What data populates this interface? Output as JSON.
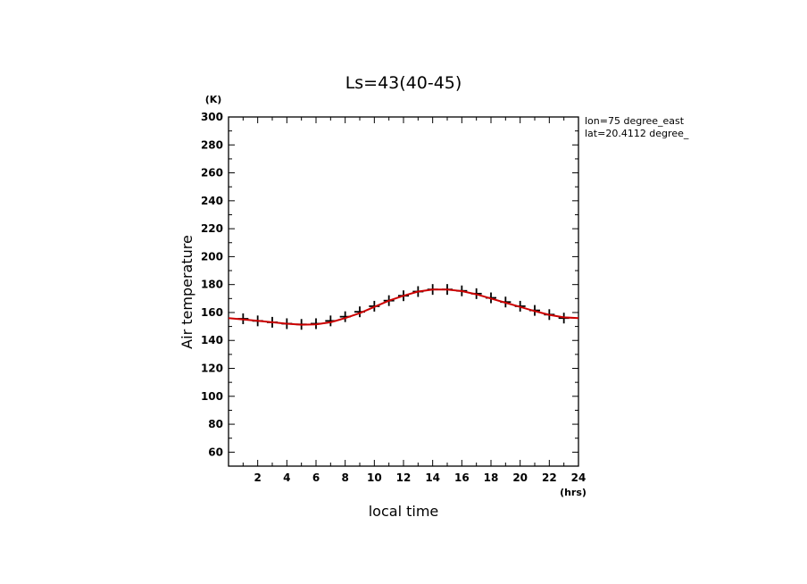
{
  "chart_data": {
    "type": "line",
    "title": "Ls=43(40-45)",
    "xlabel": "local time",
    "ylabel": "Air temperature",
    "x_unit": "(hrs)",
    "y_unit": "(K)",
    "xlim": [
      0,
      24
    ],
    "ylim": [
      50,
      300
    ],
    "x_ticks": [
      2,
      4,
      6,
      8,
      10,
      12,
      14,
      16,
      18,
      20,
      22,
      24
    ],
    "y_ticks": [
      60,
      80,
      100,
      120,
      140,
      160,
      180,
      200,
      220,
      240,
      260,
      280,
      300
    ],
    "annotations": [
      "lon=75 degree_east",
      "lat=20.4112 degree_"
    ],
    "grid": false,
    "series": [
      {
        "marker": "plus",
        "color": "#000000",
        "x": [
          1,
          2,
          3,
          4,
          5,
          6,
          7,
          8,
          9,
          10,
          11,
          12,
          13,
          14,
          15,
          16,
          17,
          18,
          19,
          20,
          21,
          22,
          23
        ],
        "y": [
          155.5,
          154,
          153,
          152,
          151.5,
          152,
          154,
          157,
          160.5,
          164.5,
          168.5,
          172,
          175,
          176.5,
          176.5,
          175.5,
          173.5,
          170.5,
          167.5,
          164.5,
          161.5,
          158.5,
          156
        ]
      },
      {
        "marker": "none",
        "color": "#cc0000",
        "x": [
          0,
          1,
          2,
          3,
          4,
          5,
          6,
          7,
          8,
          9,
          10,
          11,
          12,
          13,
          14,
          15,
          16,
          17,
          18,
          19,
          20,
          21,
          22,
          23,
          24
        ],
        "y": [
          156,
          155,
          154,
          153,
          152,
          151.3,
          151.5,
          153,
          156,
          159.5,
          164,
          168.5,
          172,
          175,
          176.5,
          176.5,
          175.3,
          173,
          170,
          167,
          164,
          161,
          158.3,
          156.5,
          156
        ]
      }
    ]
  }
}
